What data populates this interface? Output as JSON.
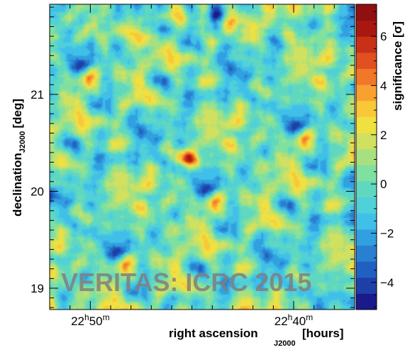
{
  "chart_data": {
    "type": "heatmap",
    "title": "",
    "xlabel": "right ascension",
    "xlabel_subscript": "J2000",
    "xlabel_unit": "[hours]",
    "ylabel": "declination",
    "ylabel_subscript": "J2000",
    "ylabel_unit": "[deg]",
    "x_ticks": [
      {
        "h": "22",
        "m": "50",
        "label_h": "h",
        "label_m": "m",
        "value_min": 50
      },
      {
        "h": "22",
        "m": "40",
        "label_h": "h",
        "label_m": "m",
        "value_min": 40
      }
    ],
    "x_range_min": [
      52.0,
      37.0
    ],
    "y_ticks": [
      "19",
      "20",
      "21"
    ],
    "y_tick_values": [
      19,
      20,
      21
    ],
    "y_range": [
      18.78,
      21.93
    ],
    "colorbar": {
      "label": "significance [σ]",
      "range": [
        -5.1,
        7.3
      ],
      "ticks": [
        "−4",
        "−2",
        "0",
        "2",
        "4",
        "6"
      ],
      "tick_values": [
        -4,
        -2,
        0,
        2,
        4,
        6
      ],
      "colors": [
        "#1a1a8c",
        "#1f3fa8",
        "#2060c0",
        "#2a80d0",
        "#30a0e0",
        "#40c0e8",
        "#50d0d8",
        "#60d8c0",
        "#80e0a0",
        "#a8e080",
        "#d0e060",
        "#f0e040",
        "#f8c838",
        "#f8a030",
        "#f07828",
        "#e05020",
        "#c83018",
        "#a81810",
        "#901010"
      ]
    },
    "hotspot": {
      "ra_min": 45.2,
      "dec": 20.35,
      "peak_sigma": 6.8
    },
    "annotation": "VERITAS: ICRC 2015"
  }
}
